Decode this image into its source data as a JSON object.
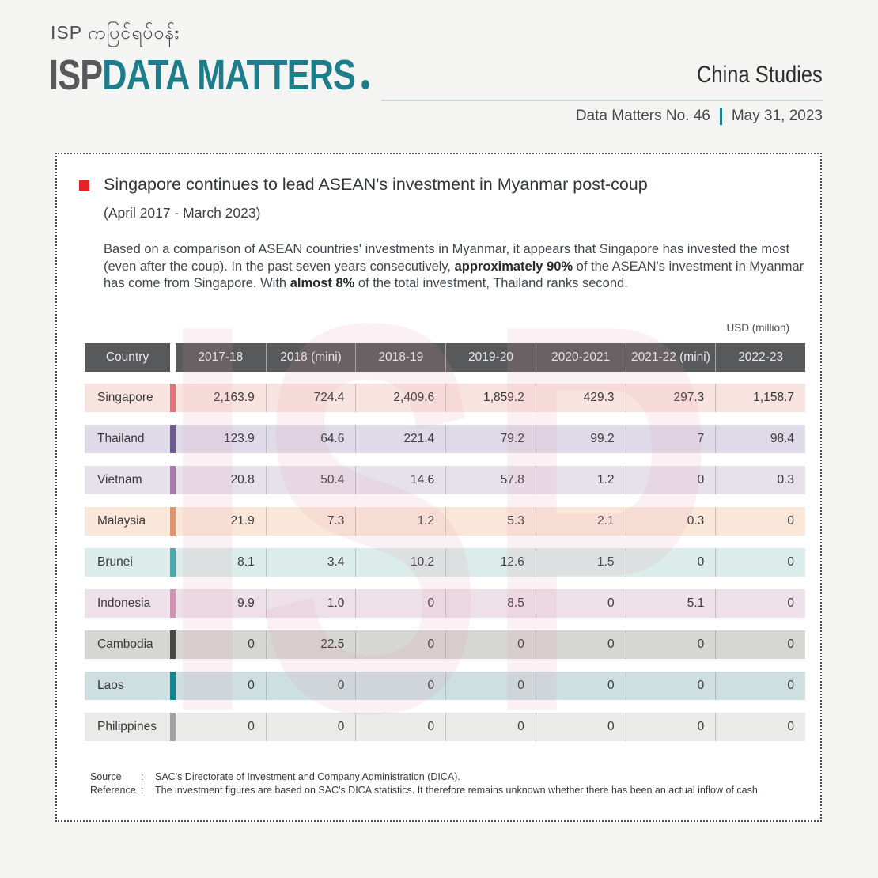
{
  "header": {
    "logo_burmese": "ISP ကပြင်ရပ်ဝန်း",
    "logo_isp": "ISP",
    "logo_rest": "DATA MATTERS",
    "program": "China Studies",
    "issue": "Data Matters No. 46",
    "date": "May 31, 2023"
  },
  "content": {
    "title": "Singapore continues to lead ASEAN's investment in Myanmar post-coup",
    "subtitle": "(April 2017 - March 2023)",
    "paragraph": {
      "p1": "Based on a comparison of ASEAN countries' investments in Myanmar, it appears that Singapore has invested the most (even after the coup). In the past seven years consecutively, ",
      "b1": "approximately 90%",
      "p2": " of the ASEAN's investment in Myanmar has come from Singapore. With ",
      "b2": "almost 8%",
      "p3": " of the total investment, Thailand ranks second."
    },
    "unit_label": "USD (million)",
    "watermark": "ISP"
  },
  "chart_data": {
    "type": "table",
    "title": "Singapore continues to lead ASEAN's investment in Myanmar post-coup (April 2017 - March 2023)",
    "unit": "USD (million)",
    "columns": [
      "Country",
      "2017-18",
      "2018 (mini)",
      "2018-19",
      "2019-20",
      "2020-2021",
      "2021-22 (mini)",
      "2022-23"
    ],
    "rows": [
      {
        "country": "Singapore",
        "values": [
          "2,163.9",
          "724.4",
          "2,409.6",
          "1,859.2",
          "429.3",
          "297.3",
          "1,158.7"
        ],
        "bg": "#f9e3e0",
        "accent": "#e2737b"
      },
      {
        "country": "Thailand",
        "values": [
          "123.9",
          "64.6",
          "221.4",
          "79.2",
          "99.2",
          "7",
          "98.4"
        ],
        "bg": "#dedae8",
        "accent": "#6e5a90"
      },
      {
        "country": "Vietnam",
        "values": [
          "20.8",
          "50.4",
          "14.6",
          "57.8",
          "1.2",
          "0",
          "0.3"
        ],
        "bg": "#e7e1eb",
        "accent": "#a878ae"
      },
      {
        "country": "Malaysia",
        "values": [
          "21.9",
          "7.3",
          "1.2",
          "5.3",
          "2.1",
          "0.3",
          "0"
        ],
        "bg": "#fae7d9",
        "accent": "#e2946c"
      },
      {
        "country": "Brunei",
        "values": [
          "8.1",
          "3.4",
          "10.2",
          "12.6",
          "1.5",
          "0",
          "0"
        ],
        "bg": "#dcecea",
        "accent": "#46abac"
      },
      {
        "country": "Indonesia",
        "values": [
          "9.9",
          "1.0",
          "0",
          "8.5",
          "0",
          "5.1",
          "0"
        ],
        "bg": "#eee0e8",
        "accent": "#d591b2"
      },
      {
        "country": "Cambodia",
        "values": [
          "0",
          "22.5",
          "0",
          "0",
          "0",
          "0",
          "0"
        ],
        "bg": "#d6d6d3",
        "accent": "#474745"
      },
      {
        "country": "Laos",
        "values": [
          "0",
          "0",
          "0",
          "0",
          "0",
          "0",
          "0"
        ],
        "bg": "#cedfe2",
        "accent": "#0b8894"
      },
      {
        "country": "Philippines",
        "values": [
          "0",
          "0",
          "0",
          "0",
          "0",
          "0",
          "0"
        ],
        "bg": "#eaeae8",
        "accent": "#a2a2a2"
      }
    ],
    "header_bg": "#58595b",
    "legend_position": "none",
    "grid": false
  },
  "footer": {
    "source_label": "Source",
    "colon": ":",
    "source_text": "SAC's Directorate of Investment and Company Administration (DICA).",
    "reference_label": "Reference",
    "reference_text": "The investment figures are based on SAC's DICA statistics. It therefore remains unknown whether there has been an actual inflow of cash."
  },
  "colors": {
    "accent_teal": "#1e7d8b",
    "bullet_red": "#e32229",
    "page_bg": "#f4f4f2"
  }
}
